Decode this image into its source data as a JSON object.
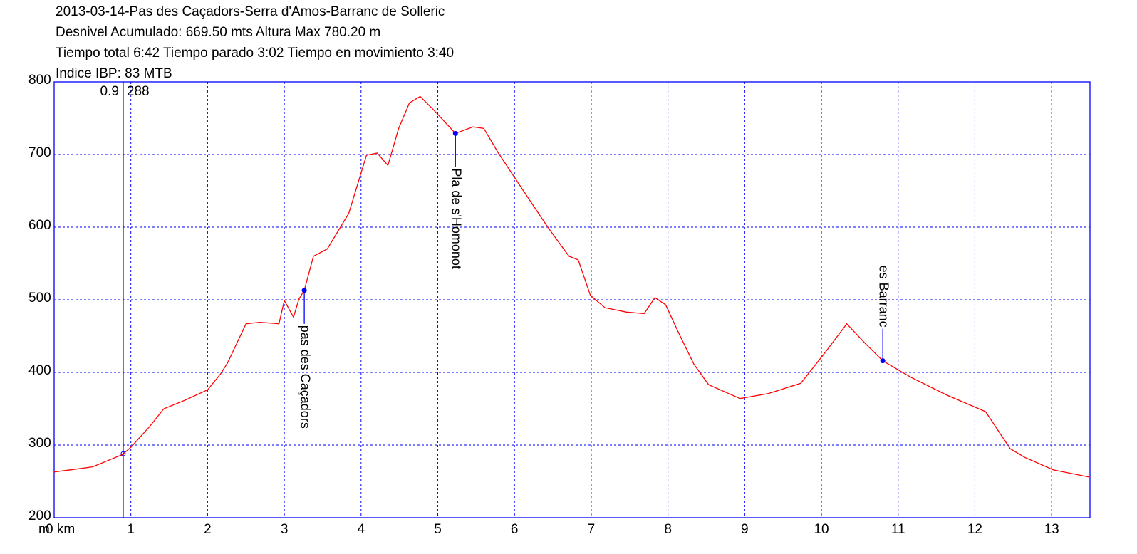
{
  "chart_data": {
    "type": "line",
    "title_lines": [
      "2013-03-14-Pas des Caçadors-Serra d'Amos-Barranc de Solleric",
      "Desnivel Acumulado: 669.50 mts  Altura Max 780.20 m",
      "Tiempo total 6:42 Tiempo parado 3:02 Tiempo en movimiento 3:40",
      "Indice IBP: 83 MTB"
    ],
    "y_label": "m",
    "x": [
      0,
      0.22,
      0.5,
      0.89,
      1.0,
      1.24,
      1.43,
      1.71,
      2.0,
      2.17,
      2.26,
      2.5,
      2.68,
      2.93,
      3.0,
      3.12,
      3.19,
      3.26,
      3.38,
      3.56,
      3.84,
      4.07,
      4.21,
      4.35,
      4.49,
      4.63,
      4.77,
      4.95,
      5.23,
      5.46,
      5.6,
      5.79,
      6.16,
      6.44,
      6.71,
      6.83,
      6.99,
      7.18,
      7.46,
      7.69,
      7.83,
      7.97,
      8.15,
      8.34,
      8.53,
      8.94,
      9.31,
      9.73,
      10.06,
      10.33,
      10.57,
      10.8,
      11.17,
      11.63,
      12.14,
      12.46,
      12.65,
      13.02,
      13.49
    ],
    "values": [
      263,
      266,
      270,
      287,
      297,
      325,
      350,
      362,
      376,
      398,
      413,
      467,
      469,
      467,
      499,
      476,
      501,
      513,
      560,
      570,
      619,
      699,
      702,
      685,
      736,
      771,
      780,
      761,
      729,
      738,
      736,
      702,
      643,
      599,
      560,
      555,
      506,
      489,
      483,
      481,
      503,
      493,
      452,
      411,
      383,
      364,
      371,
      385,
      429,
      467,
      440,
      416,
      393,
      369,
      346,
      295,
      283,
      266,
      256
    ],
    "color": "#ff0000",
    "xlim": [
      0,
      13.5
    ],
    "xticks": [
      {
        "value": 0,
        "label": "0 km"
      },
      1,
      2,
      3,
      4,
      5,
      6,
      7,
      8,
      9,
      10,
      11,
      12,
      13
    ],
    "ylim": [
      200,
      800
    ],
    "yticks": [
      200,
      300,
      400,
      500,
      600,
      700,
      800
    ],
    "grid": true,
    "grid_color": "#0000ff",
    "cursor": {
      "x": 0.9,
      "y": 288
    },
    "waypoints": [
      {
        "x": 3.26,
        "y": 513,
        "label": "pas des Caçadors",
        "position": "below"
      },
      {
        "x": 5.23,
        "y": 729,
        "label": "Pla de s'Homonot",
        "position": "below"
      },
      {
        "x": 10.8,
        "y": 416,
        "label": "es Barranc",
        "position": "above"
      }
    ]
  }
}
